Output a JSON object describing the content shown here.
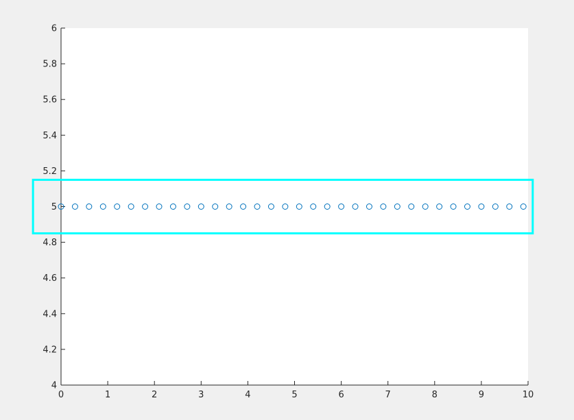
{
  "chart_data": {
    "type": "scatter",
    "title": "",
    "xlabel": "",
    "ylabel": "",
    "xlim": [
      0,
      10
    ],
    "ylim": [
      4,
      6
    ],
    "x_ticks": [
      0,
      1,
      2,
      3,
      4,
      5,
      6,
      7,
      8,
      9,
      10
    ],
    "y_ticks": [
      4,
      4.2,
      4.4,
      4.6,
      4.8,
      5,
      5.2,
      5.4,
      5.6,
      5.8,
      6
    ],
    "x_tick_labels": [
      "0",
      "1",
      "2",
      "3",
      "4",
      "5",
      "6",
      "7",
      "8",
      "9",
      "10"
    ],
    "y_tick_labels": [
      "4",
      "4.2",
      "4.4",
      "4.6",
      "4.8",
      "5",
      "5.2",
      "5.4",
      "5.6",
      "5.8",
      "6"
    ],
    "grid": false,
    "series": [
      {
        "x": [
          0,
          0.3,
          0.6,
          0.9,
          1.2,
          1.5,
          1.8,
          2.1,
          2.4,
          2.7,
          3.0,
          3.3,
          3.6,
          3.9,
          4.2,
          4.5,
          4.8,
          5.1,
          5.4,
          5.7,
          6.0,
          6.3,
          6.6,
          6.9,
          7.2,
          7.5,
          7.8,
          8.1,
          8.4,
          8.7,
          9.0,
          9.3,
          9.6,
          9.9
        ],
        "y": [
          5,
          5,
          5,
          5,
          5,
          5,
          5,
          5,
          5,
          5,
          5,
          5,
          5,
          5,
          5,
          5,
          5,
          5,
          5,
          5,
          5,
          5,
          5,
          5,
          5,
          5,
          5,
          5,
          5,
          5,
          5,
          5,
          5,
          5
        ],
        "marker": "open-circle",
        "color": "#0072bd"
      }
    ],
    "highlight_box": {
      "x_range": [
        -0.6,
        10.1
      ],
      "y_range": [
        4.85,
        5.15
      ],
      "color": "#00ffff"
    }
  }
}
